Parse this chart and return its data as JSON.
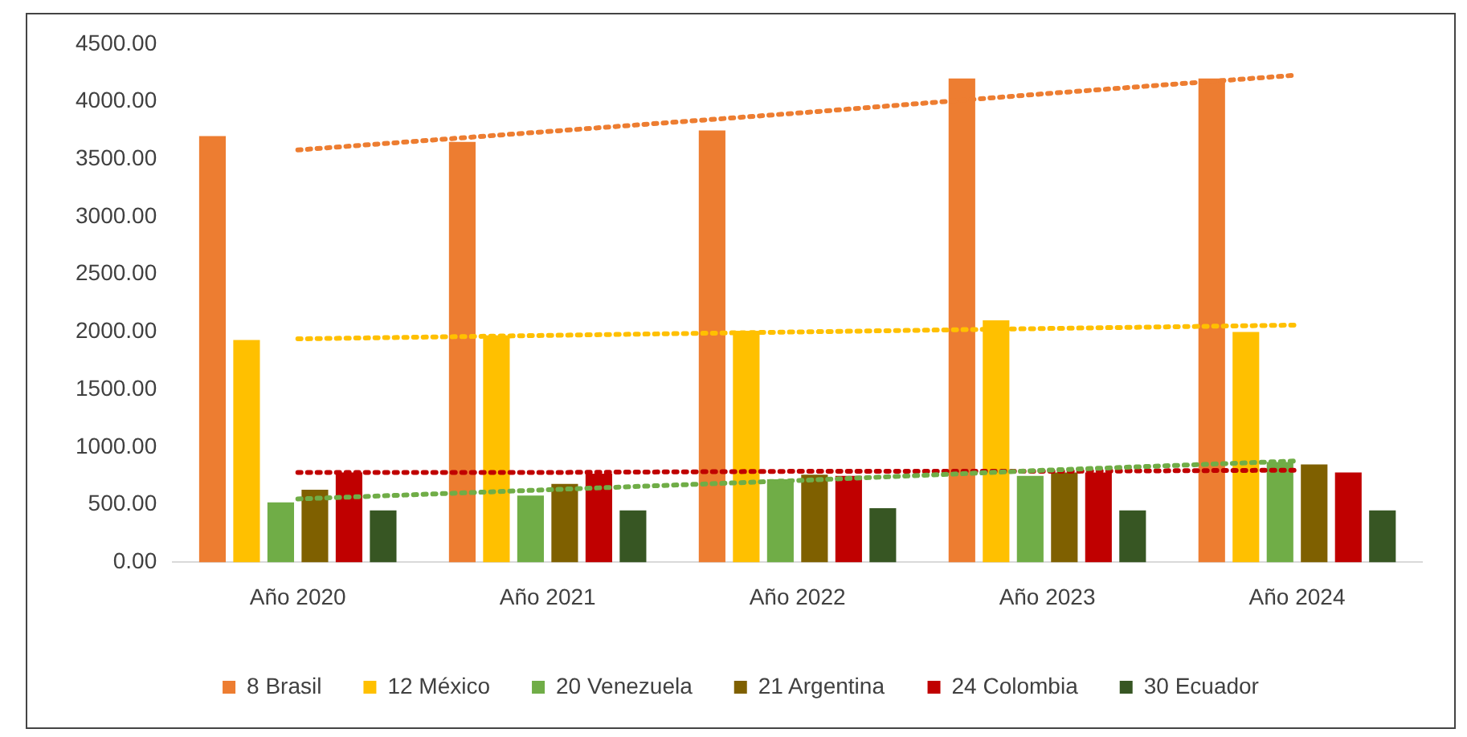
{
  "chart_data": {
    "type": "bar",
    "categories": [
      "Año 2020",
      "Año 2021",
      "Año 2022",
      "Año 2023",
      "Año 2024"
    ],
    "series": [
      {
        "name": "8 Brasil",
        "color": "#ed7d31",
        "values": [
          3700,
          3650,
          3750,
          4200,
          4200
        ]
      },
      {
        "name": "12 México",
        "color": "#ffc000",
        "values": [
          1930,
          1970,
          2010,
          2100,
          2000
        ]
      },
      {
        "name": "20 Venezuela",
        "color": "#70ad47",
        "values": [
          520,
          580,
          720,
          750,
          870
        ]
      },
      {
        "name": "21 Argentina",
        "color": "#7f6000",
        "values": [
          630,
          680,
          760,
          780,
          850
        ]
      },
      {
        "name": "24 Colombia",
        "color": "#c00000",
        "values": [
          780,
          770,
          750,
          780,
          780
        ]
      },
      {
        "name": "30 Ecuador",
        "color": "#375623",
        "values": [
          450,
          450,
          470,
          450,
          450
        ]
      },
      {
        "type": "line",
        "line_style": "dotted",
        "marker": "none",
        "color": "#ed7d31",
        "values": [
          3580,
          3740,
          3900,
          4070,
          4230
        ]
      },
      {
        "type": "line",
        "line_style": "dotted",
        "marker": "none",
        "color": "#ffc000",
        "values": [
          1940,
          1970,
          2000,
          2030,
          2060
        ]
      },
      {
        "type": "line",
        "line_style": "dotted",
        "marker": "none",
        "color": "#70ad47",
        "values": [
          550,
          630,
          710,
          800,
          880
        ]
      },
      {
        "type": "line",
        "line_style": "dotted",
        "marker": "none",
        "color": "#c00000",
        "values": [
          780,
          780,
          790,
          790,
          800
        ]
      }
    ],
    "ylim": [
      0,
      4500
    ],
    "yticks": [
      {
        "value": 0,
        "label": "0.00"
      },
      {
        "value": 500,
        "label": "500.00"
      },
      {
        "value": 1000,
        "label": "1000.00"
      },
      {
        "value": 1500,
        "label": "1500.00"
      },
      {
        "value": 2000,
        "label": "2000.00"
      },
      {
        "value": 2500,
        "label": "2500.00"
      },
      {
        "value": 3000,
        "label": "3000.00"
      },
      {
        "value": 3500,
        "label": "3500.00"
      },
      {
        "value": 4000,
        "label": "4000.00"
      },
      {
        "value": 4500,
        "label": "4500.00"
      }
    ],
    "grid": false,
    "legend": "bottom"
  }
}
